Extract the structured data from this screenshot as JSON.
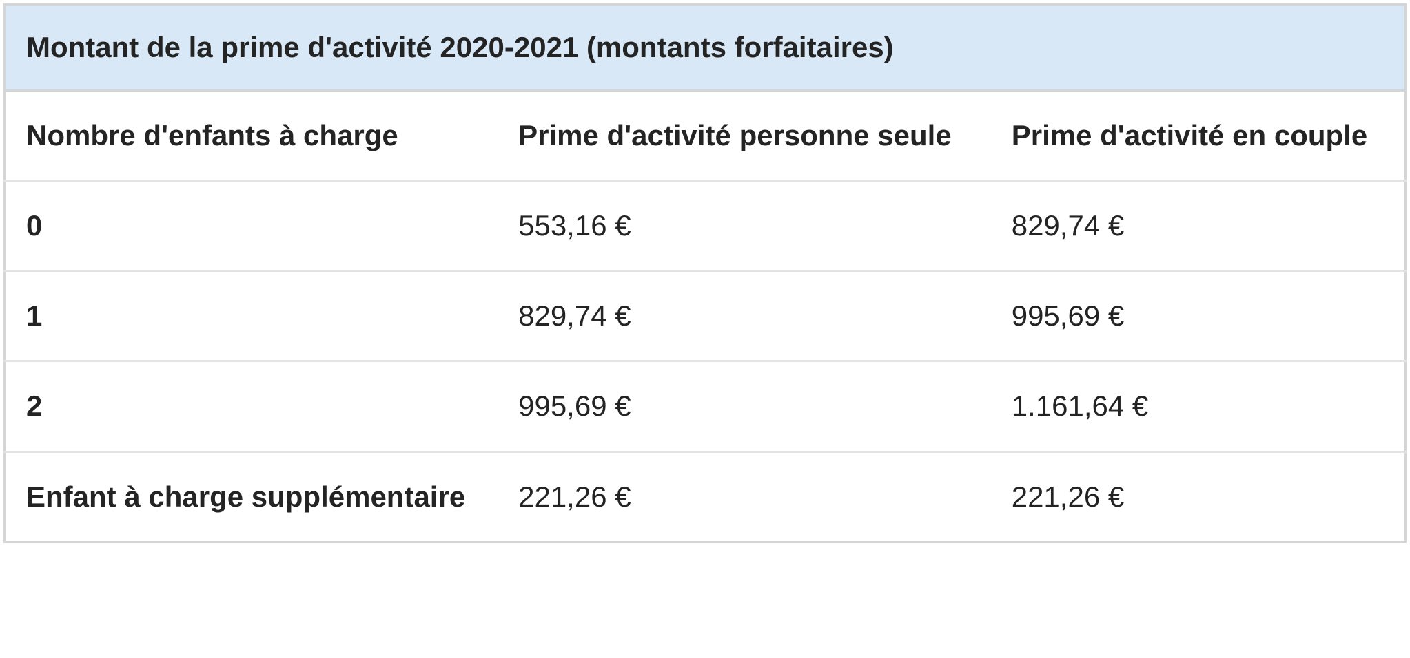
{
  "table": {
    "title": "Montant de la prime d'activité 2020-2021 (montants forfaitaires)",
    "columns": [
      "Nombre d'enfants à charge",
      "Prime d'activité personne seule",
      "Prime d'activité en couple"
    ],
    "rows": [
      {
        "label": "0",
        "values": [
          "553,16 €",
          "829,74 €"
        ]
      },
      {
        "label": "1",
        "values": [
          "829,74 €",
          "995,69 €"
        ]
      },
      {
        "label": "2",
        "values": [
          "995,69 €",
          "1.161,64 €"
        ]
      },
      {
        "label": "Enfant à charge supplémentaire",
        "values": [
          "221,26 €",
          "221,26 €"
        ]
      }
    ],
    "colors": {
      "title_bg": "#d9e8f6",
      "outer_border": "#d5d5d5",
      "row_border": "#e3e3e3",
      "text": "#242424"
    }
  },
  "chart_data": {
    "type": "table",
    "title": "Montant de la prime d'activité 2020-2021 (montants forfaitaires)",
    "categories": [
      "0",
      "1",
      "2",
      "Enfant à charge supplémentaire"
    ],
    "series": [
      {
        "name": "Prime d'activité personne seule",
        "values": [
          553.16,
          829.74,
          995.69,
          221.26
        ]
      },
      {
        "name": "Prime d'activité en couple",
        "values": [
          829.74,
          995.69,
          1161.64,
          221.26
        ]
      }
    ],
    "unit": "€"
  }
}
